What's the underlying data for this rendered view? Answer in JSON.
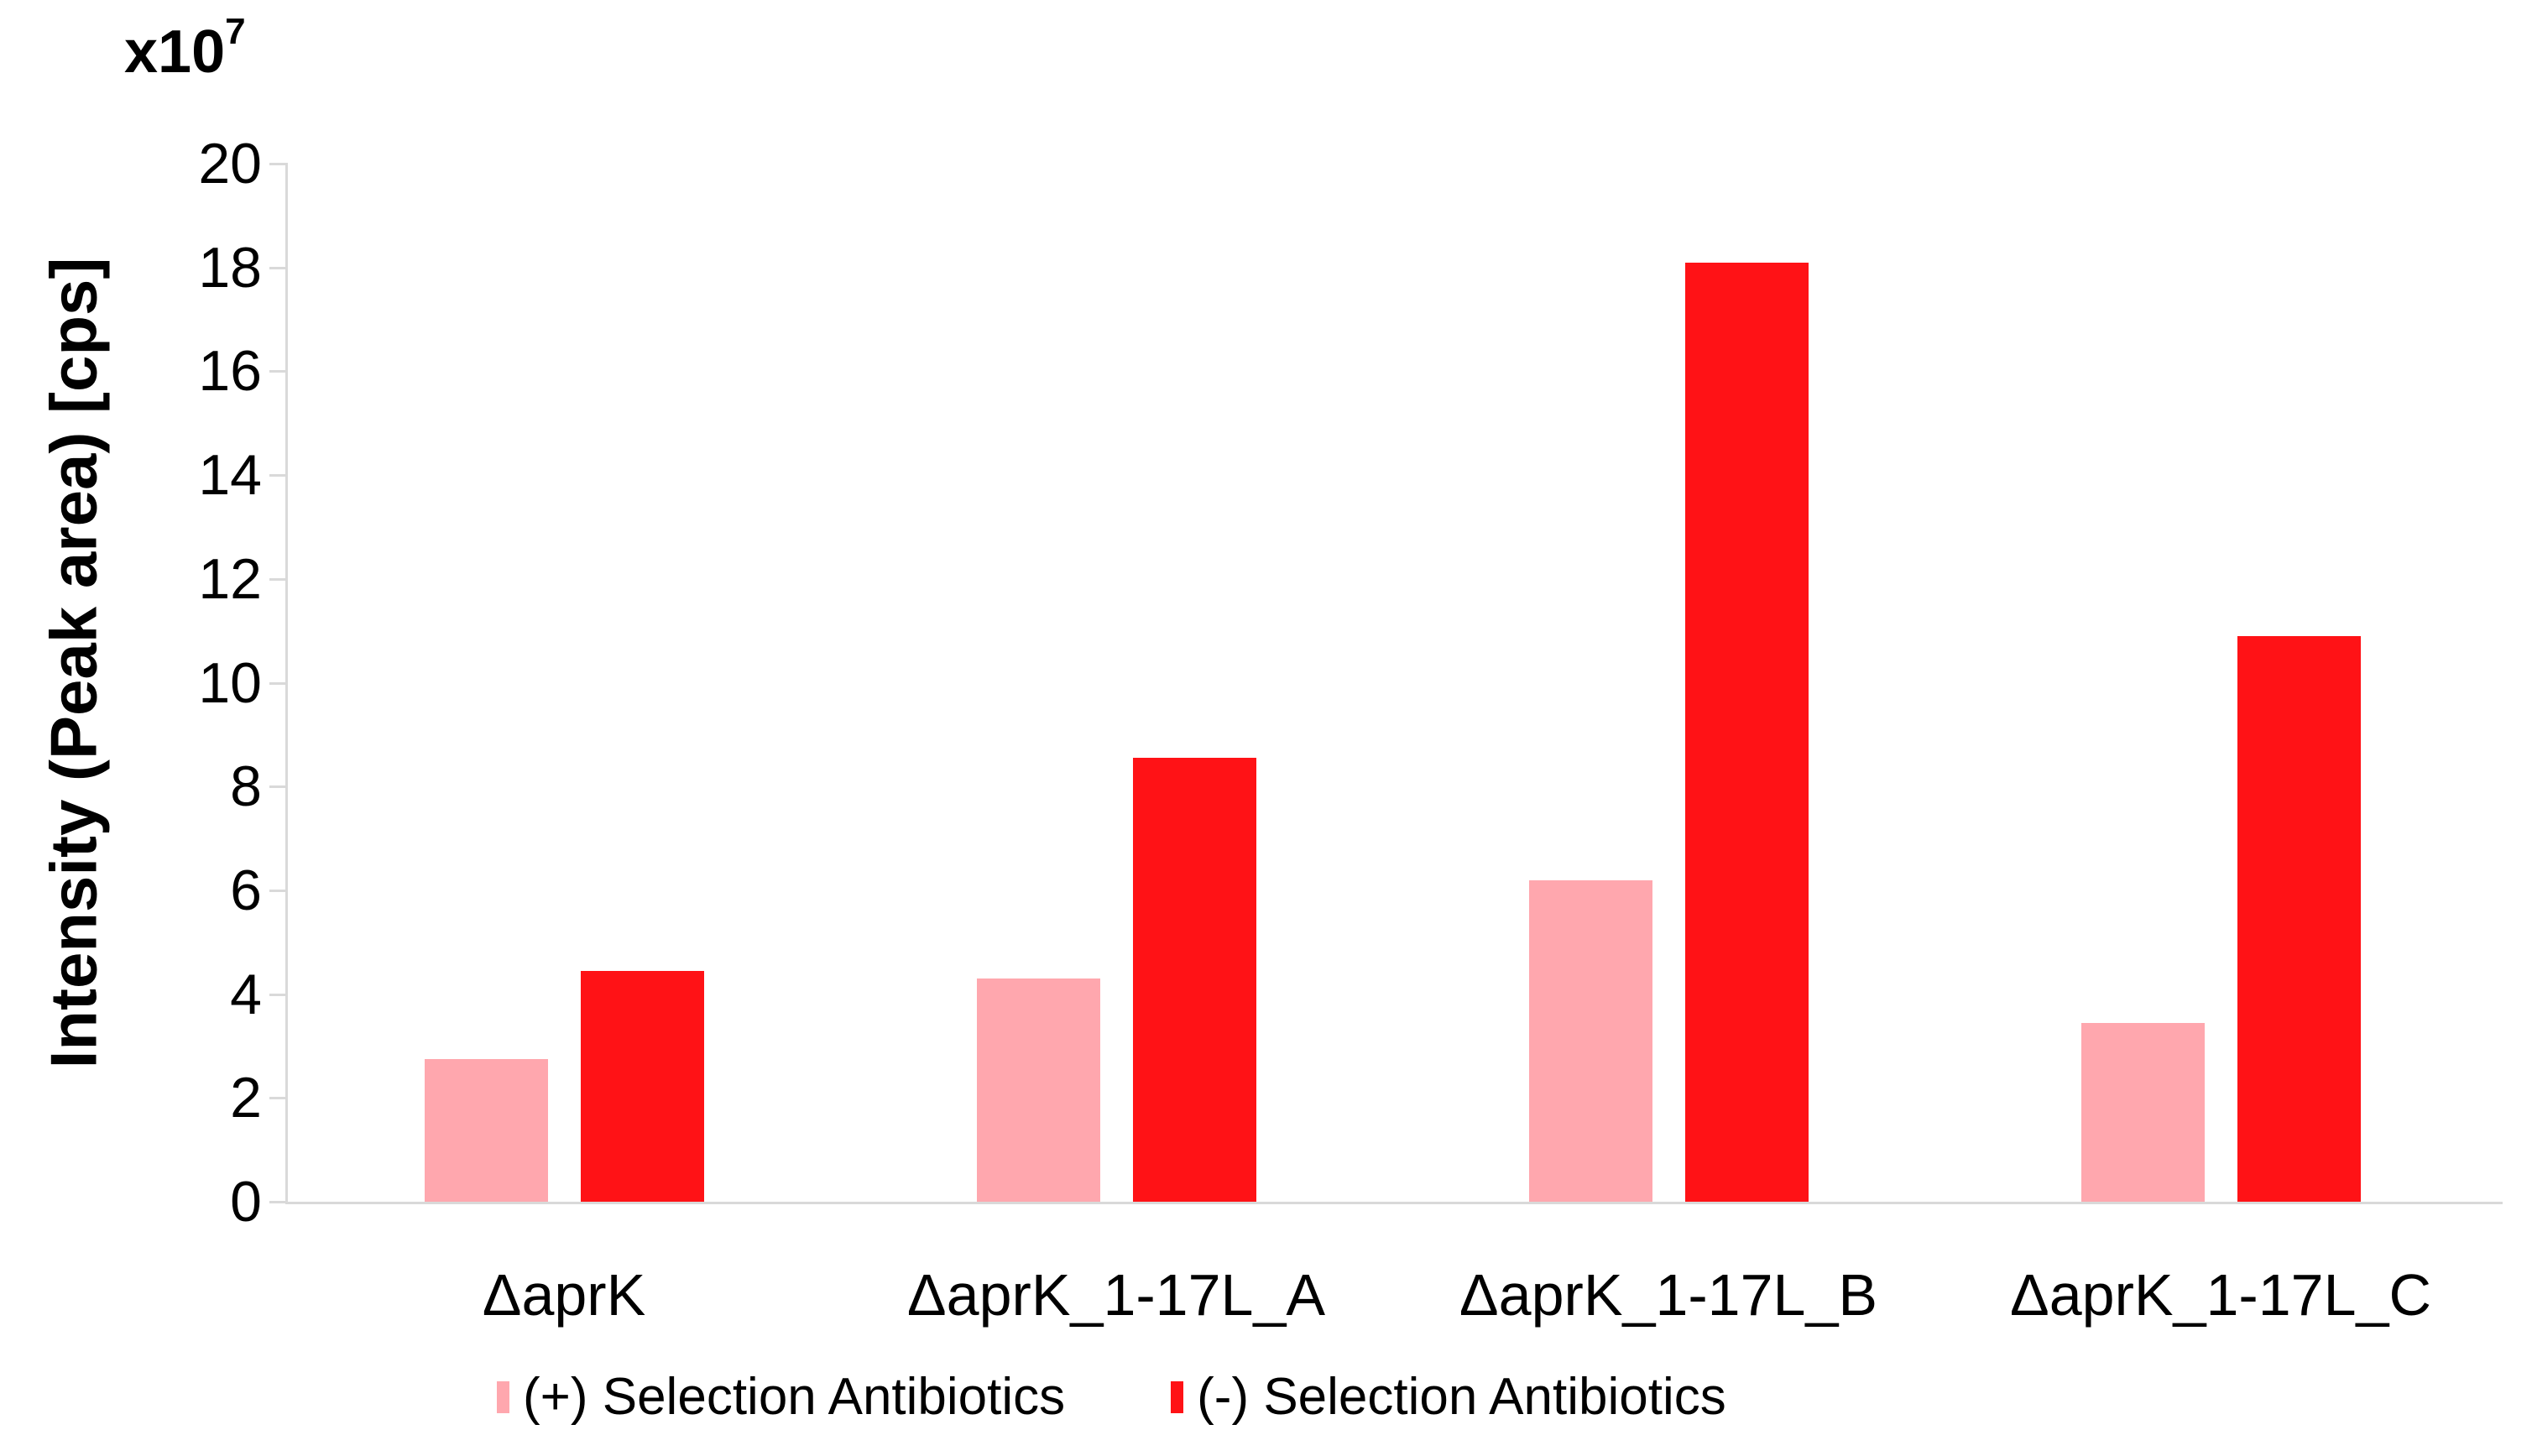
{
  "chart_data": {
    "type": "bar",
    "title": "",
    "ylabel": "Intensity (Peak area) [cps]",
    "axis_multiplier": {
      "base": "x10",
      "exp": "7"
    },
    "categories": [
      "ΔaprK",
      "ΔaprK_1-17L_A",
      "ΔaprK_1-17L_B",
      "ΔaprK_1-17L_C"
    ],
    "series": [
      {
        "name": "(+) Selection Antibiotics",
        "color": "#FFA7AE",
        "values": [
          2.75,
          4.3,
          6.2,
          3.45
        ]
      },
      {
        "name": "(-) Selection Antibiotics",
        "color": "#FF1216",
        "values": [
          4.45,
          8.55,
          18.1,
          10.9
        ]
      }
    ],
    "ylim": [
      0,
      20
    ],
    "ytick_step": 2,
    "yticks": [
      0,
      2,
      4,
      6,
      8,
      10,
      12,
      14,
      16,
      18,
      20
    ],
    "grid": false,
    "legend_position": "bottom",
    "colors": {
      "axis": "#d9d9d9",
      "text": "#000000",
      "background": "#ffffff"
    }
  }
}
